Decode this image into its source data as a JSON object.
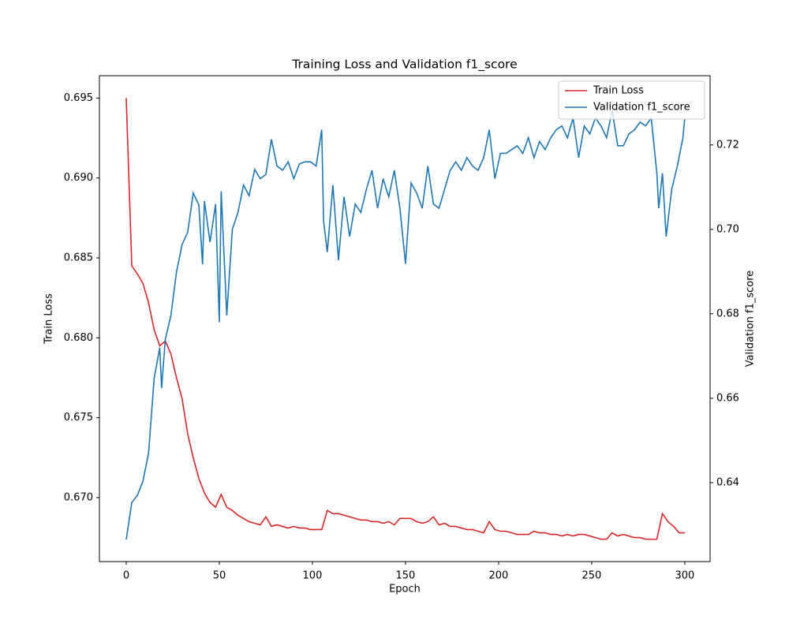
{
  "chart_data": {
    "type": "line",
    "title": "Training Loss and Validation f1_score",
    "x_label": "Epoch",
    "y_label": "Train Loss",
    "y2_label": "Validation f1_score",
    "xlim": [
      -14.4,
      313.6
    ],
    "xticks": [
      0,
      50,
      100,
      150,
      200,
      250,
      300
    ],
    "ylim": [
      0.666,
      0.6964
    ],
    "yticks": [
      {
        "value": 0.67,
        "label": "0.670"
      },
      0.675,
      {
        "value": 0.68,
        "label": "0.680"
      },
      0.685,
      {
        "value": 0.69,
        "label": "0.690"
      },
      0.695
    ],
    "y2lim": [
      0.6213,
      0.7364
    ],
    "y2ticks": [
      0.64,
      0.66,
      0.68,
      {
        "value": 0.7,
        "label": "0.70"
      },
      0.72
    ],
    "legend": "upper right",
    "grid": false,
    "series": [
      {
        "name": "Train Loss",
        "color": "#d62728",
        "x": [
          0,
          3,
          6,
          9,
          12,
          15,
          18,
          21,
          24,
          27,
          30,
          33,
          36,
          39,
          42,
          45,
          48,
          51,
          54,
          57,
          60,
          63,
          66,
          69,
          72,
          75,
          78,
          81,
          84,
          87,
          90,
          93,
          96,
          99,
          102,
          105,
          108,
          111,
          114,
          117,
          120,
          123,
          126,
          129,
          132,
          135,
          138,
          141,
          144,
          147,
          150,
          153,
          156,
          159,
          162,
          165,
          168,
          171,
          174,
          177,
          180,
          183,
          186,
          189,
          192,
          195,
          198,
          201,
          204,
          207,
          210,
          213,
          216,
          219,
          222,
          225,
          228,
          231,
          234,
          237,
          240,
          243,
          246,
          249,
          252,
          255,
          258,
          261,
          264,
          267,
          270,
          273,
          276,
          279,
          282,
          285,
          288,
          291,
          294,
          297,
          300
        ],
        "values": [
          0.695,
          0.6845,
          0.684,
          0.6834,
          0.6822,
          0.6805,
          0.6795,
          0.6798,
          0.679,
          0.6775,
          0.6762,
          0.674,
          0.6725,
          0.6712,
          0.6703,
          0.6697,
          0.6694,
          0.6702,
          0.6694,
          0.6692,
          0.6689,
          0.6687,
          0.6685,
          0.6684,
          0.6683,
          0.6688,
          0.6682,
          0.6683,
          0.6682,
          0.6681,
          0.6682,
          0.6681,
          0.6681,
          0.668,
          0.668,
          0.668,
          0.6692,
          0.669,
          0.669,
          0.6689,
          0.6688,
          0.6687,
          0.6686,
          0.6686,
          0.6685,
          0.6685,
          0.6684,
          0.6685,
          0.6683,
          0.6687,
          0.6687,
          0.6687,
          0.6685,
          0.6684,
          0.6685,
          0.6688,
          0.6683,
          0.6684,
          0.6682,
          0.6682,
          0.6681,
          0.668,
          0.668,
          0.6679,
          0.6678,
          0.6685,
          0.668,
          0.6679,
          0.6679,
          0.6678,
          0.6677,
          0.6677,
          0.6677,
          0.6679,
          0.6678,
          0.6678,
          0.6677,
          0.6677,
          0.6676,
          0.6677,
          0.6676,
          0.6677,
          0.6677,
          0.6676,
          0.6675,
          0.6674,
          0.6674,
          0.6678,
          0.6676,
          0.6677,
          0.6676,
          0.6675,
          0.6675,
          0.6674,
          0.6674,
          0.6674,
          0.669,
          0.6685,
          0.6682,
          0.6678,
          0.6678
        ]
      },
      {
        "name": "Validation f1_score",
        "color": "#1f77b4",
        "axis": "y2",
        "x": [
          0,
          3,
          6,
          9,
          12,
          15,
          18,
          19,
          21,
          24,
          27,
          30,
          33,
          36,
          39,
          41,
          42,
          45,
          48,
          50,
          51,
          54,
          57,
          60,
          63,
          66,
          69,
          72,
          75,
          78,
          81,
          84,
          87,
          90,
          93,
          96,
          99,
          102,
          105,
          106,
          108,
          111,
          114,
          117,
          120,
          123,
          126,
          129,
          132,
          135,
          138,
          141,
          144,
          147,
          150,
          153,
          156,
          159,
          162,
          165,
          168,
          171,
          174,
          177,
          180,
          183,
          186,
          189,
          192,
          195,
          198,
          201,
          204,
          207,
          210,
          213,
          216,
          219,
          222,
          225,
          228,
          231,
          234,
          237,
          240,
          243,
          246,
          249,
          252,
          255,
          258,
          261,
          264,
          267,
          270,
          273,
          276,
          279,
          282,
          285,
          286,
          288,
          290,
          293,
          296,
          299,
          300
        ],
        "values": [
          0.6265,
          0.6353,
          0.637,
          0.6404,
          0.647,
          0.6647,
          0.672,
          0.6624,
          0.674,
          0.6796,
          0.6899,
          0.6964,
          0.6993,
          0.7086,
          0.7058,
          0.6917,
          0.7067,
          0.697,
          0.706,
          0.678,
          0.709,
          0.6796,
          0.7,
          0.704,
          0.7105,
          0.708,
          0.7142,
          0.712,
          0.713,
          0.7213,
          0.715,
          0.714,
          0.716,
          0.712,
          0.7155,
          0.716,
          0.716,
          0.715,
          0.7236,
          0.702,
          0.6946,
          0.7105,
          0.6927,
          0.7077,
          0.6983,
          0.706,
          0.704,
          0.7095,
          0.714,
          0.705,
          0.712,
          0.7077,
          0.714,
          0.705,
          0.6918,
          0.711,
          0.7086,
          0.705,
          0.715,
          0.706,
          0.705,
          0.7095,
          0.714,
          0.716,
          0.714,
          0.717,
          0.715,
          0.714,
          0.717,
          0.7236,
          0.712,
          0.718,
          0.718,
          0.7189,
          0.7198,
          0.718,
          0.7217,
          0.717,
          0.7208,
          0.7189,
          0.7217,
          0.7236,
          0.7245,
          0.7217,
          0.7264,
          0.717,
          0.7245,
          0.7226,
          0.7264,
          0.7245,
          0.7217,
          0.7282,
          0.7198,
          0.7198,
          0.7226,
          0.7236,
          0.7254,
          0.7245,
          0.7264,
          0.7133,
          0.705,
          0.7133,
          0.6983,
          0.7095,
          0.715,
          0.7217,
          0.7264
        ]
      }
    ]
  }
}
